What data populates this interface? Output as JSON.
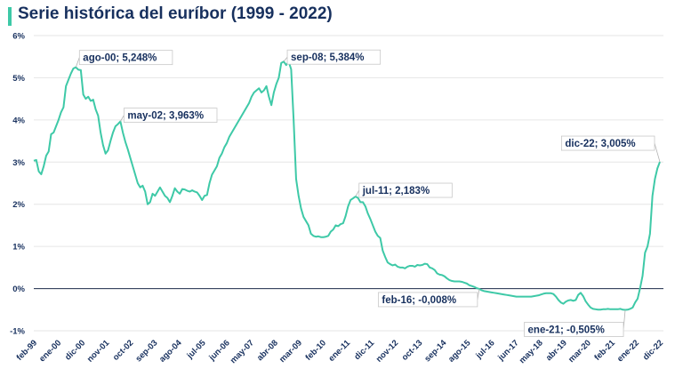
{
  "chart_data": {
    "type": "line",
    "title": "Serie histórica del euríbor (1999 - 2022)",
    "xlabel": "",
    "ylabel": "",
    "ylim": [
      -1,
      6
    ],
    "y_ticks": [
      "-1%",
      "0%",
      "1%",
      "2%",
      "3%",
      "4%",
      "5%",
      "6%"
    ],
    "y_tick_values": [
      -1,
      0,
      1,
      2,
      3,
      4,
      5,
      6
    ],
    "x_ticks": [
      "feb-99",
      "ene-00",
      "dic-00",
      "nov-01",
      "oct-02",
      "sep-03",
      "ago-04",
      "jul-05",
      "jun-06",
      "may-07",
      "abr-08",
      "mar-09",
      "feb-10",
      "ene-11",
      "dic-11",
      "nov-12",
      "oct-13",
      "sep-14",
      "ago-15",
      "jul-16",
      "jun-17",
      "may-18",
      "abr-19",
      "mar-20",
      "feb-21",
      "ene-22",
      "dic-22"
    ],
    "series": [
      {
        "name": "Euríbor",
        "color": "#3ec9a7",
        "points": [
          [
            0,
            3.03
          ],
          [
            1,
            3.05
          ],
          [
            2,
            2.78
          ],
          [
            3,
            2.71
          ],
          [
            4,
            2.9
          ],
          [
            5,
            3.15
          ],
          [
            6,
            3.25
          ],
          [
            7,
            3.66
          ],
          [
            8,
            3.7
          ],
          [
            9,
            3.85
          ],
          [
            10,
            4.0
          ],
          [
            11,
            4.18
          ],
          [
            12,
            4.3
          ],
          [
            13,
            4.8
          ],
          [
            14,
            4.95
          ],
          [
            15,
            5.1
          ],
          [
            16,
            5.22
          ],
          [
            17,
            5.248
          ],
          [
            18,
            5.19
          ],
          [
            19,
            5.18
          ],
          [
            20,
            4.6
          ],
          [
            21,
            4.5
          ],
          [
            22,
            4.55
          ],
          [
            23,
            4.45
          ],
          [
            24,
            4.48
          ],
          [
            25,
            4.25
          ],
          [
            26,
            4.1
          ],
          [
            27,
            3.7
          ],
          [
            28,
            3.4
          ],
          [
            29,
            3.2
          ],
          [
            30,
            3.28
          ],
          [
            31,
            3.5
          ],
          [
            32,
            3.7
          ],
          [
            33,
            3.85
          ],
          [
            34,
            3.9
          ],
          [
            35,
            3.963
          ],
          [
            36,
            3.7
          ],
          [
            37,
            3.48
          ],
          [
            38,
            3.3
          ],
          [
            39,
            3.1
          ],
          [
            40,
            2.9
          ],
          [
            41,
            2.7
          ],
          [
            42,
            2.5
          ],
          [
            43,
            2.4
          ],
          [
            44,
            2.44
          ],
          [
            45,
            2.3
          ],
          [
            46,
            2.0
          ],
          [
            47,
            2.05
          ],
          [
            48,
            2.25
          ],
          [
            49,
            2.2
          ],
          [
            50,
            2.3
          ],
          [
            51,
            2.4
          ],
          [
            52,
            2.3
          ],
          [
            53,
            2.2
          ],
          [
            54,
            2.15
          ],
          [
            55,
            2.05
          ],
          [
            56,
            2.2
          ],
          [
            57,
            2.38
          ],
          [
            58,
            2.3
          ],
          [
            59,
            2.25
          ],
          [
            60,
            2.36
          ],
          [
            61,
            2.35
          ],
          [
            62,
            2.32
          ],
          [
            63,
            2.3
          ],
          [
            64,
            2.33
          ],
          [
            65,
            2.3
          ],
          [
            66,
            2.28
          ],
          [
            67,
            2.2
          ],
          [
            68,
            2.1
          ],
          [
            69,
            2.2
          ],
          [
            70,
            2.22
          ],
          [
            71,
            2.5
          ],
          [
            72,
            2.7
          ],
          [
            73,
            2.8
          ],
          [
            74,
            2.9
          ],
          [
            75,
            3.1
          ],
          [
            76,
            3.2
          ],
          [
            77,
            3.35
          ],
          [
            78,
            3.45
          ],
          [
            79,
            3.6
          ],
          [
            80,
            3.7
          ],
          [
            81,
            3.8
          ],
          [
            82,
            3.9
          ],
          [
            83,
            4.0
          ],
          [
            84,
            4.1
          ],
          [
            85,
            4.2
          ],
          [
            86,
            4.3
          ],
          [
            87,
            4.4
          ],
          [
            88,
            4.55
          ],
          [
            89,
            4.65
          ],
          [
            90,
            4.7
          ],
          [
            91,
            4.75
          ],
          [
            92,
            4.65
          ],
          [
            93,
            4.7
          ],
          [
            94,
            4.8
          ],
          [
            95,
            4.55
          ],
          [
            96,
            4.35
          ],
          [
            97,
            4.65
          ],
          [
            98,
            4.85
          ],
          [
            99,
            5.0
          ],
          [
            100,
            5.35
          ],
          [
            101,
            5.384
          ],
          [
            102,
            5.3
          ],
          [
            103,
            5.38
          ],
          [
            104,
            5.2
          ],
          [
            105,
            4.0
          ],
          [
            106,
            2.6
          ],
          [
            107,
            2.2
          ],
          [
            108,
            1.9
          ],
          [
            109,
            1.7
          ],
          [
            110,
            1.6
          ],
          [
            111,
            1.5
          ],
          [
            112,
            1.3
          ],
          [
            113,
            1.25
          ],
          [
            114,
            1.23
          ],
          [
            115,
            1.24
          ],
          [
            116,
            1.22
          ],
          [
            117,
            1.22
          ],
          [
            118,
            1.23
          ],
          [
            119,
            1.25
          ],
          [
            120,
            1.35
          ],
          [
            121,
            1.4
          ],
          [
            122,
            1.5
          ],
          [
            123,
            1.48
          ],
          [
            124,
            1.53
          ],
          [
            125,
            1.55
          ],
          [
            126,
            1.72
          ],
          [
            127,
            1.95
          ],
          [
            128,
            2.1
          ],
          [
            129,
            2.14
          ],
          [
            130,
            2.183
          ],
          [
            131,
            2.15
          ],
          [
            132,
            2.05
          ],
          [
            133,
            2.05
          ],
          [
            134,
            1.95
          ],
          [
            135,
            1.78
          ],
          [
            136,
            1.65
          ],
          [
            137,
            1.5
          ],
          [
            138,
            1.35
          ],
          [
            139,
            1.25
          ],
          [
            140,
            1.2
          ],
          [
            141,
            0.9
          ],
          [
            142,
            0.75
          ],
          [
            143,
            0.62
          ],
          [
            144,
            0.58
          ],
          [
            145,
            0.55
          ],
          [
            146,
            0.57
          ],
          [
            147,
            0.52
          ],
          [
            148,
            0.5
          ],
          [
            149,
            0.5
          ],
          [
            150,
            0.48
          ],
          [
            151,
            0.52
          ],
          [
            152,
            0.54
          ],
          [
            153,
            0.54
          ],
          [
            154,
            0.52
          ],
          [
            155,
            0.56
          ],
          [
            156,
            0.55
          ],
          [
            157,
            0.56
          ],
          [
            158,
            0.59
          ],
          [
            159,
            0.58
          ],
          [
            160,
            0.5
          ],
          [
            161,
            0.48
          ],
          [
            162,
            0.44
          ],
          [
            163,
            0.36
          ],
          [
            164,
            0.33
          ],
          [
            165,
            0.32
          ],
          [
            166,
            0.29
          ],
          [
            167,
            0.24
          ],
          [
            168,
            0.2
          ],
          [
            169,
            0.18
          ],
          [
            170,
            0.17
          ],
          [
            171,
            0.17
          ],
          [
            172,
            0.17
          ],
          [
            173,
            0.16
          ],
          [
            174,
            0.14
          ],
          [
            175,
            0.12
          ],
          [
            176,
            0.08
          ],
          [
            177,
            0.06
          ],
          [
            178,
            0.04
          ],
          [
            179,
            0.01
          ],
          [
            180,
            -0.008
          ],
          [
            181,
            -0.04
          ],
          [
            182,
            -0.06
          ],
          [
            183,
            -0.07
          ],
          [
            184,
            -0.08
          ],
          [
            185,
            -0.09
          ],
          [
            186,
            -0.1
          ],
          [
            187,
            -0.11
          ],
          [
            188,
            -0.12
          ],
          [
            189,
            -0.13
          ],
          [
            190,
            -0.14
          ],
          [
            191,
            -0.15
          ],
          [
            192,
            -0.16
          ],
          [
            193,
            -0.17
          ],
          [
            194,
            -0.18
          ],
          [
            195,
            -0.19
          ],
          [
            196,
            -0.19
          ],
          [
            197,
            -0.19
          ],
          [
            198,
            -0.19
          ],
          [
            199,
            -0.19
          ],
          [
            200,
            -0.19
          ],
          [
            201,
            -0.19
          ],
          [
            202,
            -0.18
          ],
          [
            203,
            -0.17
          ],
          [
            204,
            -0.16
          ],
          [
            205,
            -0.14
          ],
          [
            206,
            -0.12
          ],
          [
            207,
            -0.11
          ],
          [
            208,
            -0.11
          ],
          [
            209,
            -0.11
          ],
          [
            210,
            -0.13
          ],
          [
            211,
            -0.19
          ],
          [
            212,
            -0.27
          ],
          [
            213,
            -0.33
          ],
          [
            214,
            -0.36
          ],
          [
            215,
            -0.31
          ],
          [
            216,
            -0.28
          ],
          [
            217,
            -0.27
          ],
          [
            218,
            -0.29
          ],
          [
            219,
            -0.27
          ],
          [
            220,
            -0.15
          ],
          [
            221,
            -0.1
          ],
          [
            222,
            -0.18
          ],
          [
            223,
            -0.3
          ],
          [
            224,
            -0.38
          ],
          [
            225,
            -0.45
          ],
          [
            226,
            -0.48
          ],
          [
            227,
            -0.49
          ],
          [
            228,
            -0.5
          ],
          [
            229,
            -0.5
          ],
          [
            230,
            -0.49
          ],
          [
            231,
            -0.49
          ],
          [
            232,
            -0.48
          ],
          [
            233,
            -0.49
          ],
          [
            234,
            -0.49
          ],
          [
            235,
            -0.49
          ],
          [
            236,
            -0.49
          ],
          [
            237,
            -0.48
          ],
          [
            238,
            -0.5
          ],
          [
            239,
            -0.505
          ],
          [
            240,
            -0.5
          ],
          [
            241,
            -0.48
          ],
          [
            242,
            -0.45
          ],
          [
            243,
            -0.33
          ],
          [
            244,
            -0.24
          ],
          [
            245,
            0.01
          ],
          [
            246,
            0.3
          ],
          [
            247,
            0.85
          ],
          [
            248,
            1.0
          ],
          [
            249,
            1.3
          ],
          [
            250,
            2.2
          ],
          [
            251,
            2.6
          ],
          [
            252,
            2.85
          ],
          [
            253,
            3.005
          ]
        ]
      }
    ],
    "annotations": [
      {
        "text": "ago-00; 5,248%",
        "index": 17,
        "value": 5.248
      },
      {
        "text": "may-02; 3,963%",
        "index": 35,
        "value": 3.963
      },
      {
        "text": "sep-08; 5,384%",
        "index": 101,
        "value": 5.384
      },
      {
        "text": "jul-11; 2,183%",
        "index": 130,
        "value": 2.183
      },
      {
        "text": "feb-16; -0,008%",
        "index": 180,
        "value": -0.008
      },
      {
        "text": "ene-21; -0,505%",
        "index": 239,
        "value": -0.505
      },
      {
        "text": "dic-22; 3,005%",
        "index": 253,
        "value": 3.005
      }
    ],
    "grid": true,
    "legend": "none"
  }
}
